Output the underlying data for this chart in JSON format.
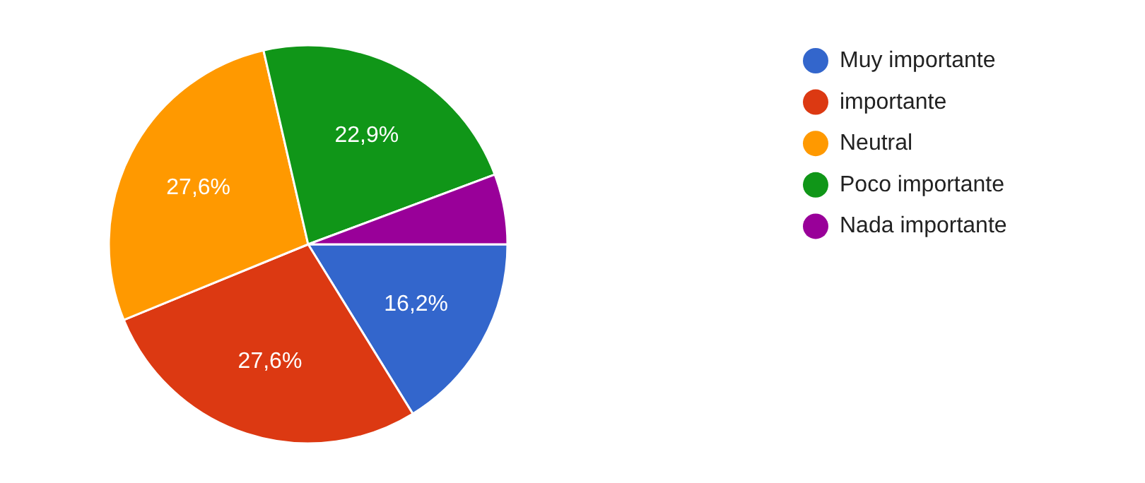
{
  "chart_data": {
    "type": "pie",
    "categories": [
      "Muy importante",
      "importante",
      "Neutral",
      "Poco importante",
      "Nada importante"
    ],
    "values": [
      16.2,
      27.6,
      27.6,
      22.9,
      5.7
    ],
    "colors": [
      "#3366cc",
      "#dc3912",
      "#ff9900",
      "#109618",
      "#990099"
    ],
    "value_labels": [
      "16,2%",
      "27,6%",
      "27,6%",
      "22,9%",
      null
    ],
    "legend": "right"
  }
}
